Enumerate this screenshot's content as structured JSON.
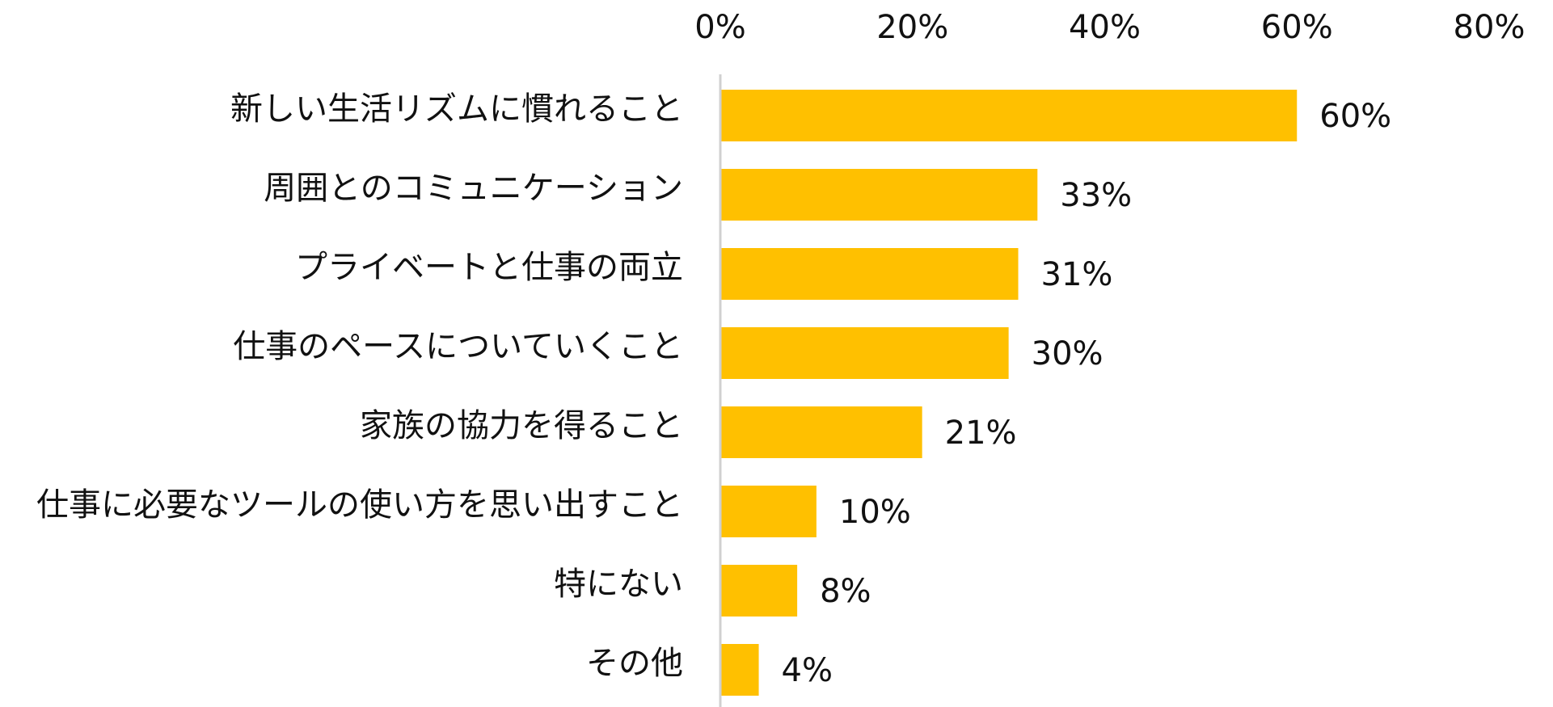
{
  "chart_data": {
    "type": "bar",
    "orientation": "horizontal",
    "categories": [
      "新しい生活リズムに慣れること",
      "周囲とのコミュニケーション",
      "プライベートと仕事の両立",
      "仕事のペースについていくこと",
      "家族の協力を得ること",
      "仕事に必要なツールの使い方を思い出すこと",
      "特にない",
      "その他"
    ],
    "values": [
      60,
      33,
      31,
      30,
      21,
      10,
      8,
      4
    ],
    "value_labels": [
      "60%",
      "33%",
      "31%",
      "30%",
      "21%",
      "10%",
      "8%",
      "4%"
    ],
    "xlim": [
      0,
      80
    ],
    "x_ticks": [
      0,
      20,
      40,
      60,
      80
    ],
    "x_tick_labels": [
      "0%",
      "20%",
      "40%",
      "60%",
      "80%"
    ],
    "x_axis_position": "top",
    "title": "",
    "xlabel": "",
    "ylabel": "",
    "grid": false,
    "legend": "none",
    "bar_color": "#FFC000",
    "axis_color": "#d0d0d0"
  }
}
